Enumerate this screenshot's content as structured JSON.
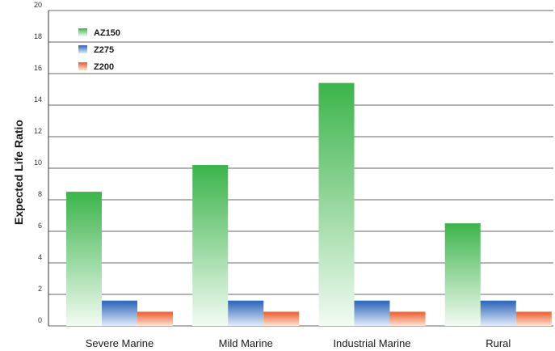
{
  "chart_data": {
    "type": "bar",
    "title": "",
    "xlabel": "",
    "ylabel": "Expected Life Ratio",
    "ylim": [
      0,
      20
    ],
    "yticks": [
      0,
      2,
      4,
      6,
      8,
      10,
      12,
      14,
      16,
      18,
      20
    ],
    "grid": true,
    "legend_position": "top-left",
    "categories": [
      "Severe Marine",
      "Mild Marine",
      "Industrial Marine",
      "Rural"
    ],
    "series": [
      {
        "name": "AZ150",
        "values": [
          8.5,
          10.2,
          15.4,
          6.5
        ],
        "color": "#3cb44b"
      },
      {
        "name": "Z275",
        "values": [
          1.6,
          1.6,
          1.6,
          1.6
        ],
        "color": "#2f6fbf"
      },
      {
        "name": "Z200",
        "values": [
          0.9,
          0.9,
          0.9,
          0.9
        ],
        "color": "#ee6a3a"
      }
    ]
  }
}
